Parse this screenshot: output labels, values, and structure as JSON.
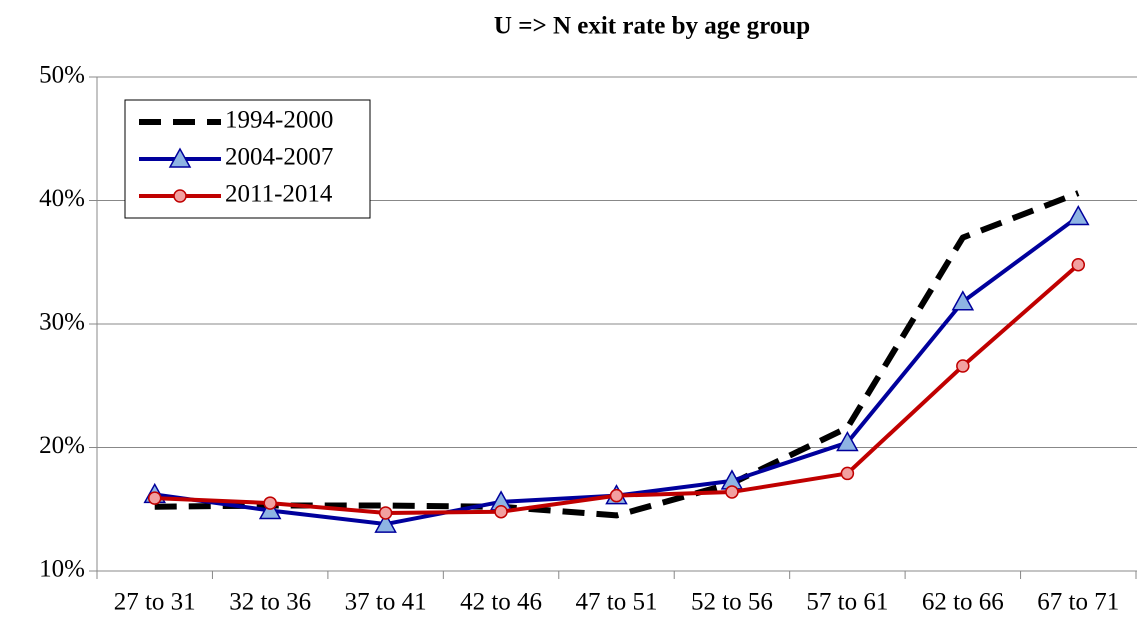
{
  "chart_data": {
    "type": "line",
    "title": "U => N exit rate by age group",
    "categories": [
      "27 to 31",
      "32 to 36",
      "37 to 41",
      "42 to 46",
      "47 to 51",
      "52 to 56",
      "57 to 61",
      "62 to 66",
      "67 to 71"
    ],
    "series": [
      {
        "name": "1994-2000",
        "color": "#000000",
        "dashed": true,
        "marker": "none",
        "values": [
          15.2,
          15.3,
          15.3,
          15.2,
          14.5,
          17.1,
          21.6,
          37.0,
          40.6
        ]
      },
      {
        "name": "2004-2007",
        "color": "#00009c",
        "dashed": false,
        "marker": "triangle",
        "marker_color": "#8eb4e3",
        "values": [
          16.2,
          14.9,
          13.8,
          15.6,
          16.1,
          17.3,
          20.4,
          31.8,
          38.7
        ]
      },
      {
        "name": "2011-2014",
        "color": "#c00000",
        "dashed": false,
        "marker": "circle",
        "marker_color": "#f2a0a0",
        "values": [
          15.9,
          15.5,
          14.7,
          14.8,
          16.1,
          16.4,
          17.9,
          26.6,
          34.8
        ]
      }
    ],
    "ylim": [
      10,
      50
    ],
    "yticks": [
      {
        "value": 10,
        "label": "10%"
      },
      {
        "value": 20,
        "label": "20%"
      },
      {
        "value": 30,
        "label": "30%"
      },
      {
        "value": 40,
        "label": "40%"
      },
      {
        "value": 50,
        "label": "50%"
      }
    ],
    "grid": true,
    "legend": "upper-left"
  }
}
